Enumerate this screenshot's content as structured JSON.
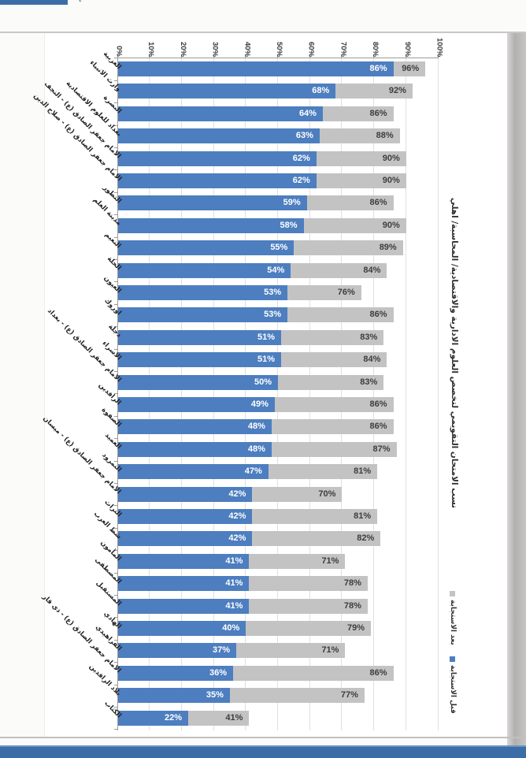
{
  "page": {
    "artifact_mark": "ء"
  },
  "chart_data": {
    "type": "bar",
    "orientation": "horizontal-rotated-page",
    "title": "نسب الامتحان التقويمي لتخصص العلوم الادارية والاقتصادية/ المحاسبة/ اهلي",
    "value_axis_ticks": [
      "0%",
      "10%",
      "20%",
      "30%",
      "40%",
      "50%",
      "60%",
      "70%",
      "80%",
      "90%",
      "100%"
    ],
    "axis_range": [
      0,
      100
    ],
    "grid": true,
    "legend_position": "right",
    "legend": [
      {
        "label": "بعد الاستجابة",
        "color": "#c3c3c3"
      },
      {
        "label": "قبل الاستجابة",
        "color": "#4d7ebf"
      }
    ],
    "categories": [
      "الغربية",
      "وارث الانبياء",
      "البصرة",
      "بغداد للعلوم الاقتصادية",
      "الامام جعفر الصادق (ع) - النجف",
      "الامام جعفر الصادق (ع) - صلاح الدين",
      "التطور",
      "مدينة العلم",
      "النعيم",
      "الحلة",
      "العيون",
      "اوروك",
      "دجلة",
      "الاسراء",
      "الامام جعفر الصادق (ع) - بغداد",
      "الرافدين",
      "الصفوة",
      "العميد",
      "النمرود",
      "الامام جعفر الصادق (ع) - ميسان",
      "التراث",
      "شط العرب",
      "المأمون",
      "المصطفى",
      "المستقبل",
      "الهادي",
      "الفراهيدي",
      "الامام جعفر الصادق (ع) - ذي قار",
      "بلاد الرافدين",
      "الكتاب"
    ],
    "series": [
      {
        "name": "قبل الاستجابة",
        "color": "#4d7ebf",
        "values": [
          86,
          68,
          64,
          63,
          62,
          62,
          59,
          58,
          55,
          54,
          53,
          53,
          51,
          51,
          50,
          49,
          48,
          48,
          47,
          42,
          42,
          42,
          41,
          41,
          41,
          40,
          37,
          36,
          35,
          22
        ]
      },
      {
        "name": "بعد الاستجابة",
        "color": "#c3c3c3",
        "values": [
          96,
          92,
          86,
          88,
          90,
          90,
          86,
          90,
          89,
          84,
          76,
          86,
          83,
          84,
          83,
          86,
          86,
          87,
          81,
          70,
          81,
          82,
          71,
          78,
          78,
          79,
          71,
          86,
          77,
          41
        ]
      }
    ]
  }
}
